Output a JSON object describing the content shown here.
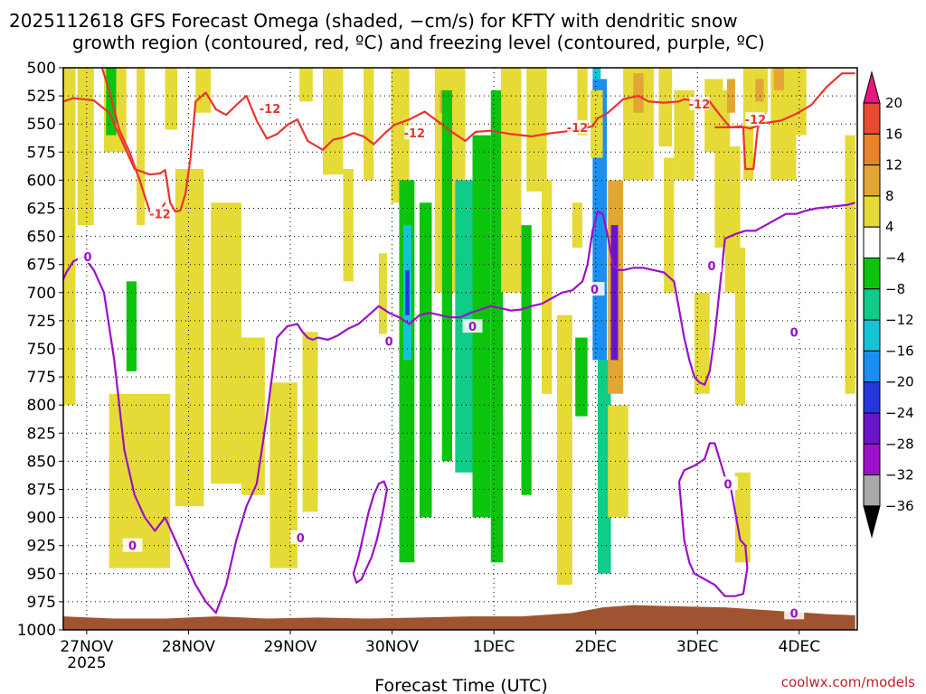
{
  "chart_data": {
    "type": "heatmap",
    "title_line1": "2025112618 GFS Forecast Omega (shaded, −cm/s) for KFTY with dendritic snow",
    "title_line2": "growth region (contoured, red, ºC) and freezing level (contoured, purple, ºC)",
    "xlabel": "Forecast Time (UTC)",
    "ylabel": "",
    "credit": "coolwx.com/models",
    "y_ticks": [
      500,
      525,
      550,
      575,
      600,
      625,
      650,
      675,
      700,
      725,
      750,
      775,
      800,
      825,
      850,
      875,
      900,
      925,
      950,
      975,
      1000
    ],
    "ylim": [
      1000,
      500
    ],
    "xlim": [
      0,
      7.8
    ],
    "x_ticks": [
      {
        "label": "27NOV",
        "sub": "2025",
        "t": 0.23
      },
      {
        "label": "28NOV",
        "t": 1.23
      },
      {
        "label": "29NOV",
        "t": 2.23
      },
      {
        "label": "30NOV",
        "t": 3.23
      },
      {
        "label": "1DEC",
        "t": 4.23
      },
      {
        "label": "2DEC",
        "t": 5.23
      },
      {
        "label": "3DEC",
        "t": 6.23
      },
      {
        "label": "4DEC",
        "t": 7.23
      }
    ],
    "colorbar": {
      "labels": [
        "20",
        "16",
        "12",
        "8",
        "4",
        "−4",
        "−8",
        "−12",
        "−16",
        "−20",
        "−24",
        "−28",
        "−32",
        "−36"
      ],
      "levels": [
        {
          "lo": 20,
          "hi": 24,
          "color": "#e8177f"
        },
        {
          "lo": 16,
          "hi": 20,
          "color": "#e84a33"
        },
        {
          "lo": 12,
          "hi": 16,
          "color": "#e8822b"
        },
        {
          "lo": 8,
          "hi": 12,
          "color": "#e3a535"
        },
        {
          "lo": 4,
          "hi": 8,
          "color": "#e6da36"
        },
        {
          "lo": -4,
          "hi": 4,
          "color": "#ffffff"
        },
        {
          "lo": -8,
          "hi": -4,
          "color": "#0cc40e"
        },
        {
          "lo": -12,
          "hi": -8,
          "color": "#0fcc88"
        },
        {
          "lo": -16,
          "hi": -12,
          "color": "#13c4d4"
        },
        {
          "lo": -20,
          "hi": -16,
          "color": "#1a8ff0"
        },
        {
          "lo": -24,
          "hi": -20,
          "color": "#2637e0"
        },
        {
          "lo": -28,
          "hi": -24,
          "color": "#6a14c9"
        },
        {
          "lo": -32,
          "hi": -28,
          "color": "#9b10c8"
        },
        {
          "lo": -36,
          "hi": -32,
          "color": "#a9a9a9"
        },
        {
          "lo": -40,
          "hi": -36,
          "color": "#000000"
        }
      ]
    },
    "omega_patches": [
      {
        "t0": 0.0,
        "t1": 0.12,
        "p0": 500,
        "p1": 800,
        "v": 5
      },
      {
        "t0": 0.14,
        "t1": 0.3,
        "p0": 500,
        "p1": 640,
        "v": 5
      },
      {
        "t0": 0.4,
        "t1": 0.62,
        "p0": 500,
        "p1": 575,
        "v": 5
      },
      {
        "t0": 0.42,
        "t1": 0.52,
        "p0": 500,
        "p1": 560,
        "v": -6
      },
      {
        "t0": 0.62,
        "t1": 0.72,
        "p0": 690,
        "p1": 770,
        "v": -6
      },
      {
        "t0": 0.45,
        "t1": 1.05,
        "p0": 790,
        "p1": 945,
        "v": 5
      },
      {
        "t0": 0.72,
        "t1": 0.8,
        "p0": 500,
        "p1": 640,
        "v": 5
      },
      {
        "t0": 1.0,
        "t1": 1.12,
        "p0": 500,
        "p1": 555,
        "v": 5
      },
      {
        "t0": 1.1,
        "t1": 1.38,
        "p0": 590,
        "p1": 890,
        "v": 5
      },
      {
        "t0": 1.45,
        "t1": 1.75,
        "p0": 620,
        "p1": 870,
        "v": 5
      },
      {
        "t0": 1.3,
        "t1": 1.45,
        "p0": 500,
        "p1": 540,
        "v": 5
      },
      {
        "t0": 1.75,
        "t1": 1.98,
        "p0": 740,
        "p1": 880,
        "v": 5
      },
      {
        "t0": 2.03,
        "t1": 2.3,
        "p0": 780,
        "p1": 945,
        "v": 5
      },
      {
        "t0": 2.32,
        "t1": 2.45,
        "p0": 500,
        "p1": 530,
        "v": 5
      },
      {
        "t0": 2.35,
        "t1": 2.5,
        "p0": 735,
        "p1": 895,
        "v": 5
      },
      {
        "t0": 2.55,
        "t1": 2.75,
        "p0": 500,
        "p1": 595,
        "v": 5
      },
      {
        "t0": 2.75,
        "t1": 2.85,
        "p0": 590,
        "p1": 690,
        "v": 5
      },
      {
        "t0": 2.95,
        "t1": 3.05,
        "p0": 500,
        "p1": 600,
        "v": 5
      },
      {
        "t0": 3.1,
        "t1": 3.18,
        "p0": 665,
        "p1": 740,
        "v": 5
      },
      {
        "t0": 3.22,
        "t1": 3.4,
        "p0": 500,
        "p1": 620,
        "v": 5
      },
      {
        "t0": 3.3,
        "t1": 3.45,
        "p0": 600,
        "p1": 940,
        "v": -6
      },
      {
        "t0": 3.34,
        "t1": 3.42,
        "p0": 640,
        "p1": 760,
        "v": -14
      },
      {
        "t0": 3.36,
        "t1": 3.4,
        "p0": 680,
        "p1": 720,
        "v": -22
      },
      {
        "t0": 3.5,
        "t1": 3.62,
        "p0": 620,
        "p1": 900,
        "v": -6
      },
      {
        "t0": 3.65,
        "t1": 3.95,
        "p0": 500,
        "p1": 700,
        "v": 5
      },
      {
        "t0": 3.7,
        "t1": 3.78,
        "p0": 520,
        "p1": 540,
        "v": 10
      },
      {
        "t0": 3.72,
        "t1": 3.82,
        "p0": 520,
        "p1": 850,
        "v": -6
      },
      {
        "t0": 3.85,
        "t1": 4.02,
        "p0": 600,
        "p1": 860,
        "v": -10
      },
      {
        "t0": 4.02,
        "t1": 4.2,
        "p0": 560,
        "p1": 900,
        "v": -6
      },
      {
        "t0": 4.2,
        "t1": 4.32,
        "p0": 520,
        "p1": 940,
        "v": -6
      },
      {
        "t0": 4.3,
        "t1": 4.5,
        "p0": 500,
        "p1": 700,
        "v": 5
      },
      {
        "t0": 4.5,
        "t1": 4.6,
        "p0": 640,
        "p1": 880,
        "v": -6
      },
      {
        "t0": 4.55,
        "t1": 4.75,
        "p0": 500,
        "p1": 610,
        "v": 5
      },
      {
        "t0": 4.7,
        "t1": 4.8,
        "p0": 600,
        "p1": 790,
        "v": 5
      },
      {
        "t0": 4.85,
        "t1": 5.0,
        "p0": 720,
        "p1": 960,
        "v": 5
      },
      {
        "t0": 5.05,
        "t1": 5.15,
        "p0": 500,
        "p1": 560,
        "v": 5
      },
      {
        "t0": 5.0,
        "t1": 5.1,
        "p0": 620,
        "p1": 660,
        "v": 5
      },
      {
        "t0": 5.2,
        "t1": 5.28,
        "p0": 500,
        "p1": 510,
        "v": -14
      },
      {
        "t0": 5.2,
        "t1": 5.34,
        "p0": 510,
        "p1": 760,
        "v": -18
      },
      {
        "t0": 5.18,
        "t1": 5.3,
        "p0": 520,
        "p1": 580,
        "v": 5
      },
      {
        "t0": 5.25,
        "t1": 5.38,
        "p0": 760,
        "p1": 950,
        "v": -10
      },
      {
        "t0": 5.03,
        "t1": 5.15,
        "p0": 740,
        "p1": 810,
        "v": -6
      },
      {
        "t0": 5.35,
        "t1": 5.5,
        "p0": 600,
        "p1": 790,
        "v": 10
      },
      {
        "t0": 5.38,
        "t1": 5.45,
        "p0": 640,
        "p1": 760,
        "v": -26
      },
      {
        "t0": 5.5,
        "t1": 5.8,
        "p0": 500,
        "p1": 600,
        "v": 5
      },
      {
        "t0": 5.6,
        "t1": 5.7,
        "p0": 505,
        "p1": 540,
        "v": 10
      },
      {
        "t0": 5.35,
        "t1": 5.55,
        "p0": 800,
        "p1": 900,
        "v": 5
      },
      {
        "t0": 5.85,
        "t1": 5.98,
        "p0": 500,
        "p1": 570,
        "v": 5
      },
      {
        "t0": 5.9,
        "t1": 6.0,
        "p0": 580,
        "p1": 700,
        "v": 5
      },
      {
        "t0": 6.0,
        "t1": 6.2,
        "p0": 520,
        "p1": 600,
        "v": 5
      },
      {
        "t0": 6.2,
        "t1": 6.35,
        "p0": 700,
        "p1": 790,
        "v": 5
      },
      {
        "t0": 6.3,
        "t1": 6.48,
        "p0": 510,
        "p1": 575,
        "v": 5
      },
      {
        "t0": 6.4,
        "t1": 6.55,
        "p0": 520,
        "p1": 660,
        "v": 5
      },
      {
        "t0": 6.5,
        "t1": 6.65,
        "p0": 570,
        "p1": 700,
        "v": 5
      },
      {
        "t0": 6.52,
        "t1": 6.6,
        "p0": 510,
        "p1": 540,
        "v": 10
      },
      {
        "t0": 6.6,
        "t1": 6.7,
        "p0": 660,
        "p1": 800,
        "v": 5
      },
      {
        "t0": 6.6,
        "t1": 6.75,
        "p0": 860,
        "p1": 940,
        "v": 5
      },
      {
        "t0": 6.68,
        "t1": 6.78,
        "p0": 500,
        "p1": 600,
        "v": 5
      },
      {
        "t0": 6.78,
        "t1": 6.92,
        "p0": 500,
        "p1": 540,
        "v": 5
      },
      {
        "t0": 6.8,
        "t1": 6.88,
        "p0": 510,
        "p1": 530,
        "v": 10
      },
      {
        "t0": 6.95,
        "t1": 7.2,
        "p0": 500,
        "p1": 600,
        "v": 5
      },
      {
        "t0": 6.98,
        "t1": 7.08,
        "p0": 500,
        "p1": 520,
        "v": 10
      },
      {
        "t0": 7.2,
        "t1": 7.3,
        "p0": 500,
        "p1": 560,
        "v": 5
      },
      {
        "t0": 7.68,
        "t1": 7.78,
        "p0": 560,
        "p1": 790,
        "v": 5
      }
    ],
    "series": [
      {
        "name": "dendritic snow growth region (-12 ºC)",
        "color": "#e8342f",
        "t": [
          0.0,
          0.1,
          0.2,
          0.3,
          0.45,
          0.55,
          0.7,
          0.85,
          0.95,
          1.0,
          1.05,
          1.1,
          1.15,
          1.2,
          1.25,
          1.3,
          1.4,
          1.5,
          1.6,
          1.7,
          1.8,
          1.9,
          2.0,
          2.1,
          2.2,
          2.3,
          2.4,
          2.55,
          2.65,
          2.75,
          2.85,
          2.95,
          3.05,
          3.15,
          3.25,
          3.4,
          3.55,
          3.7,
          3.8,
          3.95,
          4.05,
          4.2,
          4.4,
          4.6,
          4.8,
          5.0,
          5.2,
          5.25,
          5.35,
          5.5,
          5.65,
          5.75,
          5.9,
          6.05,
          6.1,
          6.25,
          6.35,
          6.45,
          6.55,
          6.65,
          6.75,
          6.9,
          7.05,
          7.2,
          7.35,
          7.5,
          7.65,
          7.78
        ],
        "p": [
          530,
          527,
          528,
          529,
          540,
          560,
          590,
          595,
          594,
          591,
          620,
          628,
          627,
          612,
          580,
          530,
          522,
          537,
          542,
          533,
          525,
          547,
          563,
          559,
          551,
          546,
          565,
          573,
          564,
          562,
          558,
          561,
          568,
          559,
          551,
          546,
          539,
          549,
          556,
          565,
          557,
          556,
          559,
          561,
          558,
          556,
          552,
          545,
          540,
          528,
          525,
          530,
          531,
          530,
          528,
          530,
          530,
          542,
          553,
          552,
          554,
          549,
          547,
          541,
          533,
          517,
          505,
          505
        ]
      },
      {
        "name": "dendritic snow growth region lower lobe (-12 ºC)",
        "color": "#e8342f",
        "t": [
          0.38,
          0.45,
          0.55,
          0.65,
          0.75,
          0.85,
          0.92,
          1.0
        ],
        "p": [
          500,
          520,
          555,
          575,
          600,
          628,
          632,
          620
        ]
      },
      {
        "name": "-12 contour upper right",
        "color": "#e8342f",
        "t": [
          6.4,
          6.48,
          6.6,
          6.68,
          6.7,
          6.78,
          6.82,
          6.85,
          6.9
        ],
        "p": [
          553,
          553,
          553,
          553,
          590,
          590,
          555,
          545,
          540
        ]
      },
      {
        "name": "freezing level (0 ºC)",
        "color": "#9b10c8",
        "t": [
          0.0,
          0.03,
          0.1,
          0.2,
          0.3,
          0.4,
          0.5,
          0.6,
          0.7,
          0.8,
          0.9,
          1.0,
          1.1,
          1.2,
          1.3,
          1.4,
          1.5,
          1.6,
          1.7,
          1.8,
          1.9,
          2.0,
          2.1,
          2.2,
          2.3,
          2.35,
          2.4,
          2.45,
          2.5,
          2.6,
          2.7,
          2.8,
          2.9,
          3.0,
          3.1,
          3.2,
          3.3,
          3.4,
          3.5,
          3.6,
          3.7,
          3.8,
          3.9,
          4.0,
          4.1,
          4.2,
          4.3,
          4.4,
          4.5,
          4.6,
          4.7,
          4.8,
          4.9,
          5.0,
          5.1,
          5.15,
          5.2,
          5.25,
          5.3,
          5.35,
          5.4,
          5.45,
          5.5,
          5.6,
          5.7,
          5.8,
          5.9,
          6.0,
          6.1,
          6.15,
          6.2,
          6.25,
          6.3,
          6.35,
          6.4,
          6.5,
          6.6,
          6.7,
          6.8,
          6.9,
          7.0,
          7.1,
          7.2,
          7.3,
          7.4,
          7.5,
          7.6,
          7.7,
          7.78
        ],
        "p": [
          688,
          682,
          672,
          668,
          680,
          700,
          760,
          840,
          880,
          900,
          912,
          900,
          920,
          940,
          960,
          975,
          985,
          960,
          920,
          890,
          870,
          810,
          740,
          730,
          728,
          735,
          740,
          742,
          740,
          742,
          738,
          732,
          728,
          720,
          712,
          718,
          722,
          728,
          720,
          718,
          720,
          722,
          722,
          718,
          715,
          712,
          714,
          716,
          715,
          712,
          710,
          705,
          700,
          698,
          690,
          675,
          645,
          628,
          630,
          650,
          675,
          680,
          680,
          678,
          678,
          680,
          682,
          690,
          740,
          760,
          775,
          780,
          782,
          770,
          738,
          652,
          648,
          645,
          645,
          640,
          635,
          630,
          630,
          627,
          625,
          624,
          623,
          622,
          620
        ]
      },
      {
        "name": "freezing level closed contour A",
        "color": "#9b10c8",
        "t": [
          2.85,
          2.9,
          2.95,
          3.0,
          3.05,
          3.1,
          3.15,
          3.18,
          3.13,
          3.08,
          3.03,
          2.98,
          2.93,
          2.88,
          2.85
        ],
        "p": [
          950,
          935,
          915,
          895,
          880,
          870,
          868,
          875,
          900,
          920,
          935,
          945,
          955,
          958,
          950
        ]
      },
      {
        "name": "freezing level closed contour B",
        "color": "#9b10c8",
        "t": [
          6.05,
          6.1,
          6.2,
          6.3,
          6.35,
          6.4,
          6.5,
          6.55,
          6.65,
          6.7,
          6.72,
          6.68,
          6.6,
          6.5,
          6.4,
          6.3,
          6.2,
          6.15,
          6.1,
          6.05
        ],
        "p": [
          868,
          858,
          854,
          848,
          834,
          834,
          864,
          870,
          920,
          925,
          945,
          968,
          970,
          970,
          960,
          955,
          950,
          940,
          920,
          868
        ]
      }
    ],
    "contour_labels": [
      {
        "text": "-12",
        "t": 2.03,
        "p": 536,
        "color": "red"
      },
      {
        "text": "-12",
        "t": 3.45,
        "p": 558,
        "color": "red"
      },
      {
        "text": "-12",
        "t": 5.05,
        "p": 553,
        "color": "red"
      },
      {
        "text": "-12",
        "t": 6.8,
        "p": 546,
        "color": "red"
      },
      {
        "text": "-12",
        "t": 6.25,
        "p": 532,
        "color": "red"
      },
      {
        "text": "-12",
        "t": 0.95,
        "p": 630,
        "color": "red"
      },
      {
        "text": "0",
        "t": 0.24,
        "p": 668,
        "color": "purple"
      },
      {
        "text": "0",
        "t": 0.68,
        "p": 925,
        "color": "purple"
      },
      {
        "text": "0",
        "t": 2.33,
        "p": 918,
        "color": "purple"
      },
      {
        "text": "0",
        "t": 3.2,
        "p": 743,
        "color": "purple"
      },
      {
        "text": "0",
        "t": 4.02,
        "p": 730,
        "color": "purple"
      },
      {
        "text": "0",
        "t": 5.22,
        "p": 697,
        "color": "purple"
      },
      {
        "text": "0",
        "t": 6.37,
        "p": 676,
        "color": "purple"
      },
      {
        "text": "0",
        "t": 6.53,
        "p": 870,
        "color": "purple"
      },
      {
        "text": "0",
        "t": 7.18,
        "p": 735,
        "color": "purple"
      },
      {
        "text": "0",
        "t": 7.18,
        "p": 985,
        "color": "purple"
      }
    ],
    "terrain": {
      "color": "#9e5430",
      "t": [
        0,
        0.5,
        1.0,
        1.5,
        2.0,
        2.5,
        3.0,
        3.5,
        4.0,
        4.5,
        5.0,
        5.3,
        5.6,
        6.0,
        6.5,
        7.0,
        7.5,
        7.78
      ],
      "p": [
        988,
        990,
        990,
        988,
        990,
        989,
        990,
        989,
        988,
        988,
        985,
        980,
        978,
        979,
        980,
        983,
        986,
        987
      ]
    }
  }
}
